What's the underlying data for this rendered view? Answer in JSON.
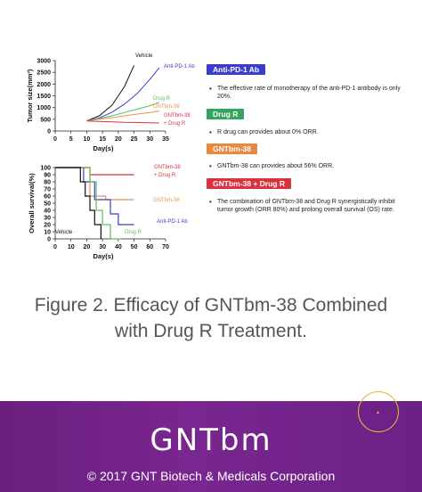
{
  "chart_data": [
    {
      "type": "line",
      "ylabel": "Tumor size(mm³)",
      "xlabel": "Day(s)",
      "xlim": [
        0,
        35
      ],
      "ylim": [
        0,
        3000
      ],
      "xticks": [
        "0",
        "5",
        "10",
        "15",
        "20",
        "25",
        "30",
        "35"
      ],
      "yticks": [
        "0",
        "500",
        "1000",
        "1500",
        "2000",
        "2500",
        "3000"
      ],
      "series": [
        {
          "name": "Vehicle",
          "color": "#111111",
          "x": [
            10,
            14,
            18,
            22,
            25
          ],
          "y": [
            430,
            650,
            1100,
            1900,
            2800
          ]
        },
        {
          "name": "Anti-PD-1 Ab",
          "color": "#3b3fc6",
          "x": [
            10,
            14,
            18,
            22,
            26,
            30,
            33
          ],
          "y": [
            430,
            560,
            800,
            1150,
            1600,
            2200,
            2700
          ]
        },
        {
          "name": "Drug R",
          "color": "#5dbb63",
          "x": [
            10,
            14,
            18,
            22,
            26,
            30,
            33
          ],
          "y": [
            430,
            530,
            650,
            790,
            930,
            1080,
            1220
          ]
        },
        {
          "name": "GNTbm-38",
          "color": "#e8954a",
          "x": [
            10,
            14,
            18,
            22,
            26,
            30,
            33
          ],
          "y": [
            430,
            500,
            570,
            650,
            720,
            790,
            860
          ]
        },
        {
          "name": "GNTbm-38 + Drug R",
          "color": "#d9333f",
          "x": [
            10,
            14,
            18,
            22,
            26,
            30,
            33
          ],
          "y": [
            430,
            410,
            390,
            370,
            360,
            350,
            340
          ]
        }
      ]
    },
    {
      "type": "line",
      "ylabel": "Overall survival(%)",
      "xlabel": "Day(s)",
      "xlim": [
        0,
        70
      ],
      "ylim": [
        0,
        100
      ],
      "xticks": [
        "0",
        "10",
        "20",
        "30",
        "40",
        "50",
        "60",
        "70"
      ],
      "yticks": [
        "0",
        "10",
        "20",
        "30",
        "40",
        "50",
        "60",
        "70",
        "80",
        "90",
        "100"
      ],
      "series": [
        {
          "name": "GNTbm-38 + Drug R",
          "color": "#d9333f",
          "x": [
            0,
            22,
            22,
            50
          ],
          "y": [
            100,
            100,
            90,
            90
          ]
        },
        {
          "name": "GNTbm-38",
          "color": "#e8954a",
          "x": [
            0,
            22,
            22,
            32,
            32,
            50
          ],
          "y": [
            100,
            100,
            60,
            60,
            55,
            55
          ]
        },
        {
          "name": "Anti-PD-1 Ab",
          "color": "#3b3fc6",
          "x": [
            0,
            18,
            18,
            25,
            25,
            35,
            35,
            40,
            40,
            50
          ],
          "y": [
            100,
            100,
            80,
            80,
            55,
            55,
            35,
            35,
            20,
            20
          ]
        },
        {
          "name": "Drug R",
          "color": "#5dbb63",
          "x": [
            0,
            22,
            22,
            26,
            26,
            30,
            30,
            35,
            35,
            42
          ],
          "y": [
            100,
            100,
            80,
            80,
            40,
            40,
            20,
            20,
            0,
            0
          ]
        },
        {
          "name": "Vehicle",
          "color": "#111111",
          "x": [
            0,
            16,
            16,
            19,
            19,
            22,
            22,
            25,
            25,
            29,
            29
          ],
          "y": [
            100,
            100,
            80,
            80,
            60,
            60,
            40,
            40,
            20,
            20,
            0
          ]
        }
      ]
    }
  ],
  "legend_boxes": [
    {
      "label": "Anti-PD-1 Ab",
      "color": "#3b3fc6",
      "text": "The effective rate of monotherapy of the anti-PD-1 antibody is only 20%."
    },
    {
      "label": "Drug R",
      "color": "#36a65a",
      "text": "R drug can provides about 0% ORR."
    },
    {
      "label": "GNTbm-38",
      "color": "#e8893f",
      "text": "GNTbm-38 can provides about 56% ORR."
    },
    {
      "label": "GNTbm-38 + Drug R",
      "color": "#d9333f",
      "text": "The combination of GNTbm-38 and Drug R synergistically inhibit tumor growth (ORR 80%) and prolong overall survival (OS) rate."
    }
  ],
  "caption": {
    "line1": "Figure 2. Efficacy of GNTbm-38 Combined",
    "line2": "with Drug R Treatment."
  },
  "footer": {
    "brand": "GNTbm",
    "copyright": "© 2017 GNT Biotech & Medicals Corporation",
    "colors": {
      "background": "#6a1f7e",
      "ring": "#e0b93a"
    }
  }
}
